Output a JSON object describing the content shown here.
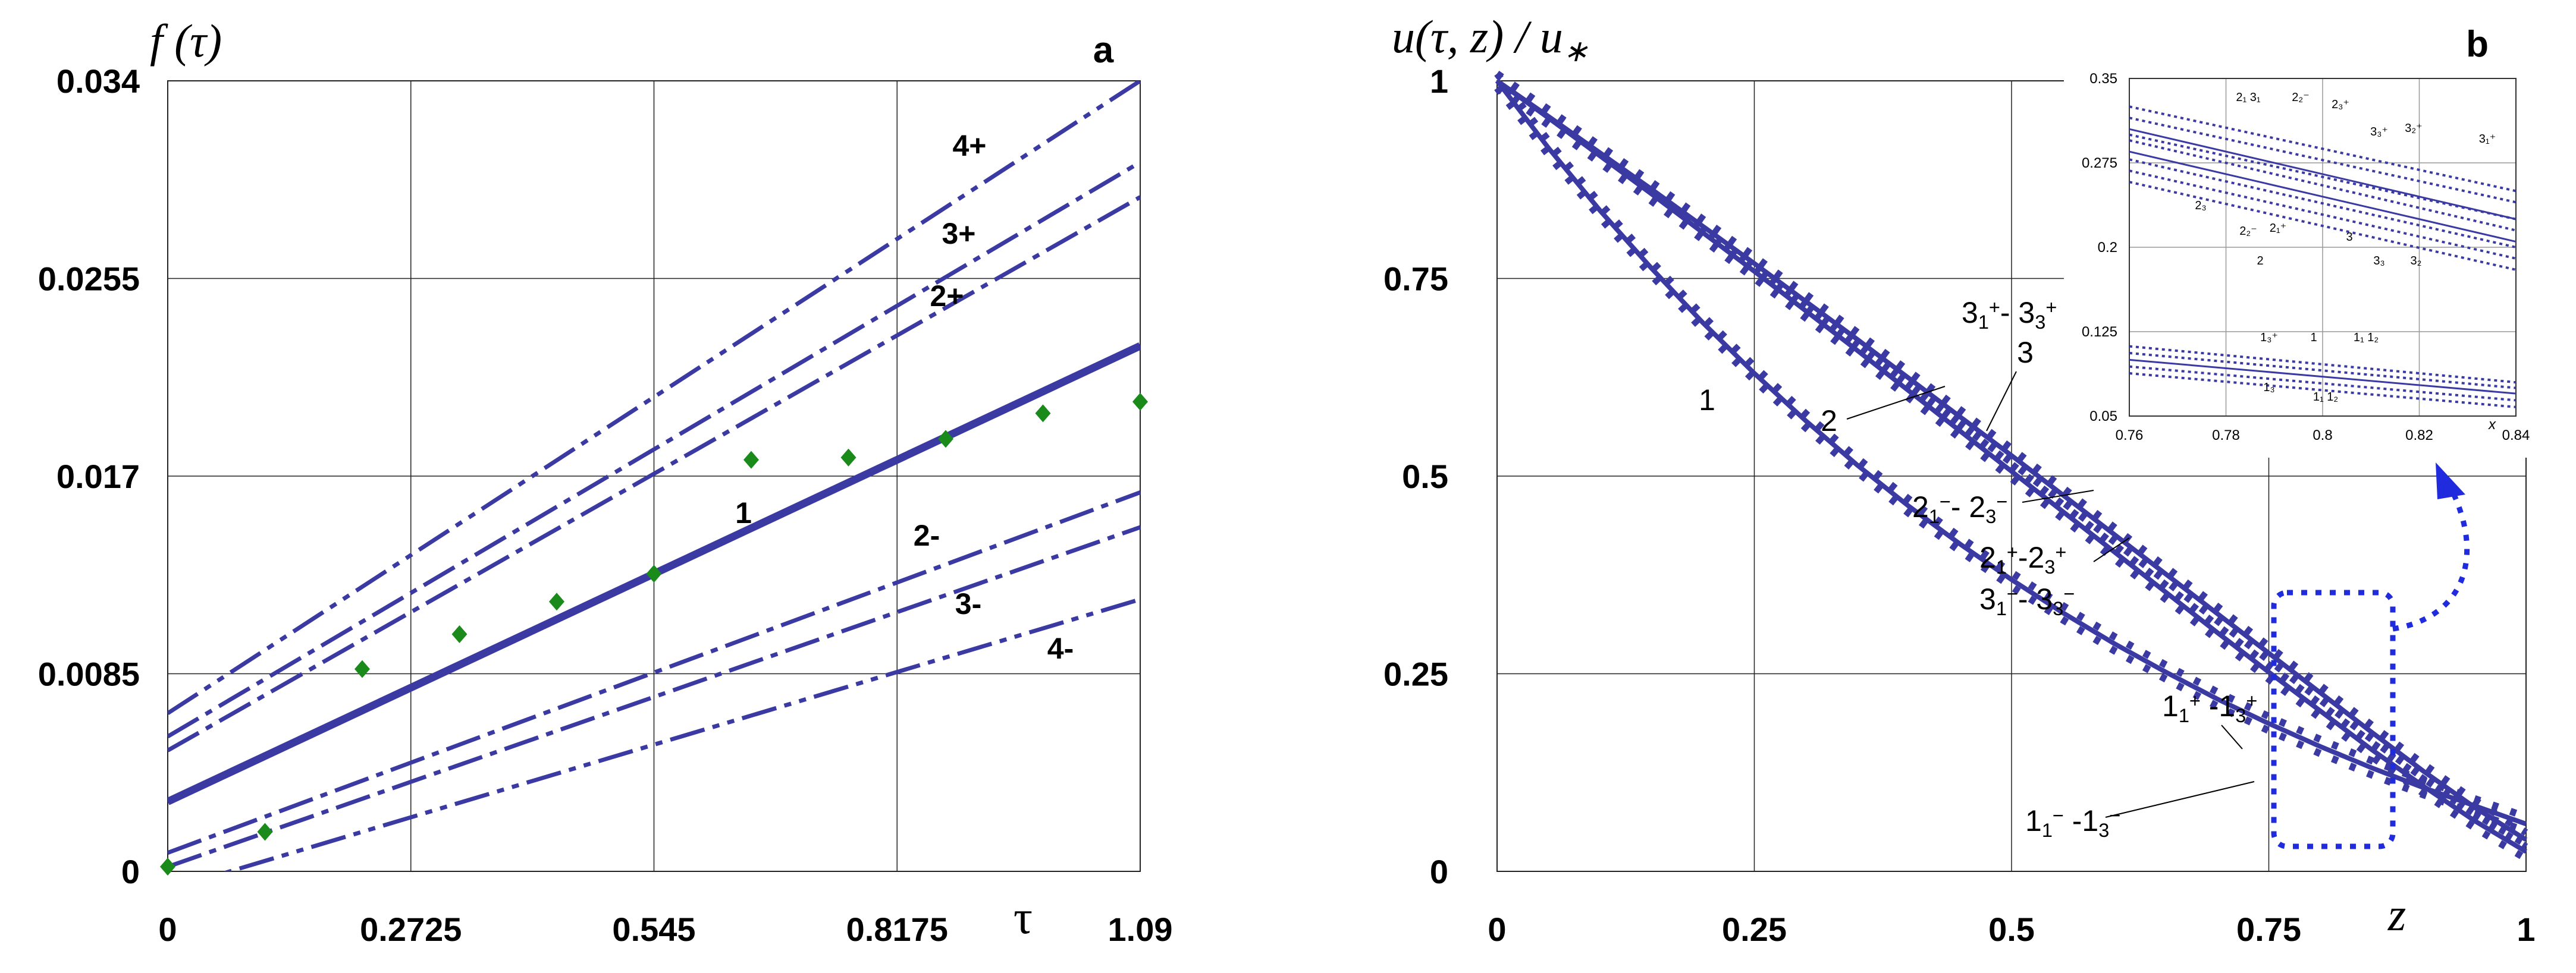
{
  "chart_data": [
    {
      "type": "line",
      "panel_label": "a",
      "ylabel": "f (τ)",
      "xlabel": "τ",
      "xlim": [
        0,
        1.09
      ],
      "ylim": [
        0,
        0.034
      ],
      "x_ticks": [
        "0",
        "0.2725",
        "0.545",
        "0.8175",
        "1.09"
      ],
      "y_ticks": [
        "0",
        "0.0085",
        "0.017",
        "0.0255",
        "0.034"
      ],
      "grid": true,
      "series": [
        {
          "name": "1",
          "x": [
            0,
            1.09
          ],
          "values": [
            0.003,
            0.0226
          ],
          "style": "solid-thick"
        },
        {
          "name": "2+",
          "x": [
            0,
            1.09
          ],
          "values": [
            0.0052,
            0.029
          ],
          "style": "dashdot"
        },
        {
          "name": "3+",
          "x": [
            0,
            1.09
          ],
          "values": [
            0.0058,
            0.0305
          ],
          "style": "dashdot"
        },
        {
          "name": "4+",
          "x": [
            0,
            1.09
          ],
          "values": [
            0.0068,
            0.034
          ],
          "style": "dashdotdot"
        },
        {
          "name": "2-",
          "x": [
            0,
            1.09
          ],
          "values": [
            0.0008,
            0.0163
          ],
          "style": "dashdot"
        },
        {
          "name": "3-",
          "x": [
            0,
            1.09
          ],
          "values": [
            0.0002,
            0.0148
          ],
          "style": "dashdot"
        },
        {
          "name": "4-",
          "x": [
            0,
            1.09
          ],
          "values": [
            -0.0008,
            0.0117
          ],
          "style": "dashdotdot"
        }
      ],
      "markers": {
        "x": [
          0,
          0.109,
          0.218,
          0.327,
          0.436,
          0.545,
          0.654,
          0.763,
          0.872,
          0.981,
          1.09
        ],
        "values": [
          0.0002,
          0.0017,
          0.0087,
          0.0102,
          0.0116,
          0.0128,
          0.0177,
          0.0178,
          0.0186,
          0.0197,
          0.0202
        ],
        "color": "#1a8a1a"
      }
    },
    {
      "type": "line",
      "panel_label": "b",
      "ylabel": "u(τ, z) / u",
      "ylabel_subscript": "∗",
      "xlabel": "z",
      "xlim": [
        0,
        1
      ],
      "ylim": [
        0,
        1
      ],
      "x_ticks": [
        "0",
        "0.25",
        "0.5",
        "0.75",
        "1"
      ],
      "y_ticks": [
        "0",
        "0.25",
        "0.5",
        "0.75",
        "1"
      ],
      "grid": true,
      "series": [
        {
          "name": "1",
          "x": [
            0,
            0.05,
            0.1,
            0.15,
            0.2,
            0.25,
            0.3,
            0.35,
            0.4,
            0.45,
            0.5,
            0.55,
            0.6,
            0.65,
            0.7,
            0.75,
            0.8,
            0.85,
            0.9,
            0.95,
            1.0
          ],
          "values": [
            1.0,
            0.915,
            0.836,
            0.763,
            0.694,
            0.63,
            0.57,
            0.514,
            0.462,
            0.414,
            0.369,
            0.327,
            0.288,
            0.252,
            0.218,
            0.187,
            0.158,
            0.131,
            0.106,
            0.083,
            0.06
          ]
        },
        {
          "name": "2",
          "x": [
            0,
            0.05,
            0.1,
            0.15,
            0.2,
            0.25,
            0.3,
            0.35,
            0.4,
            0.45,
            0.5,
            0.55,
            0.6,
            0.65,
            0.7,
            0.75,
            0.8,
            0.85,
            0.9,
            0.95,
            1.0
          ],
          "values": [
            1.0,
            0.953,
            0.905,
            0.857,
            0.808,
            0.759,
            0.709,
            0.659,
            0.608,
            0.557,
            0.506,
            0.455,
            0.404,
            0.353,
            0.302,
            0.252,
            0.203,
            0.154,
            0.108,
            0.064,
            0.025
          ]
        },
        {
          "name": "3",
          "x": [
            0,
            0.05,
            0.1,
            0.15,
            0.2,
            0.25,
            0.3,
            0.35,
            0.4,
            0.45,
            0.5,
            0.55,
            0.6,
            0.65,
            0.7,
            0.75,
            0.8,
            0.85,
            0.9,
            0.95,
            1.0
          ],
          "values": [
            1.0,
            0.955,
            0.909,
            0.863,
            0.816,
            0.769,
            0.721,
            0.673,
            0.624,
            0.575,
            0.526,
            0.476,
            0.426,
            0.376,
            0.326,
            0.276,
            0.226,
            0.176,
            0.127,
            0.081,
            0.04
          ]
        }
      ],
      "curve_labels": [
        "1",
        "2",
        "3",
        "1₁⁺ -1₃⁺",
        "1₁⁻ -1₃⁻",
        "2₁⁻- 2₃⁻",
        "2₁⁺-2₃⁺",
        "3₁⁻- 3₃⁻",
        "3₁⁺- 3₃⁺"
      ],
      "inset": {
        "xlabel": "x",
        "xlim": [
          0.76,
          0.84
        ],
        "ylim": [
          0.05,
          0.35
        ],
        "x_ticks": [
          "0.76",
          "0.78",
          "0.8",
          "0.82",
          "0.84"
        ],
        "y_ticks": [
          "0.05",
          "0.125",
          "0.2",
          "0.275",
          "0.35"
        ],
        "labels_upper": [
          "2₁ 3₁",
          "2₂⁻",
          "2₃⁺",
          "3₃⁺",
          "3₂⁺",
          "3₁⁺",
          "2₃",
          "2₂⁻",
          "2₁⁺",
          "2",
          "3",
          "3₃",
          "3₂"
        ],
        "labels_lower": [
          "1₃⁺",
          "1",
          "1₁ 1₂",
          "1₃",
          "1₁ 1₂"
        ]
      }
    }
  ]
}
